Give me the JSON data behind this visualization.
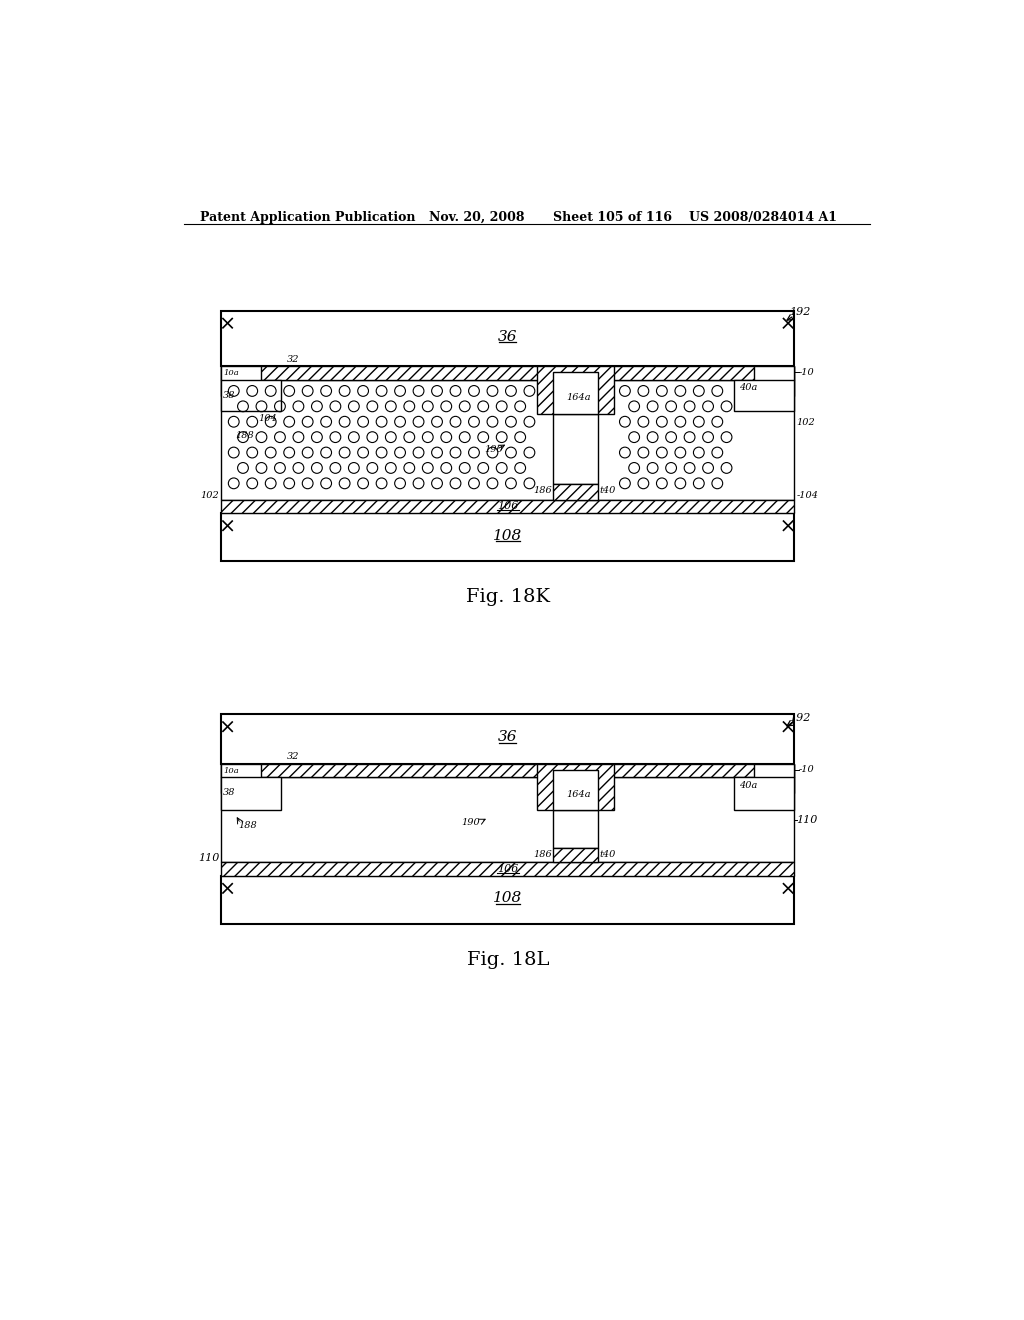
{
  "bg_color": "#ffffff",
  "header_text": "Patent Application Publication",
  "header_date": "Nov. 20, 2008",
  "header_sheet": "Sheet 105 of 116",
  "header_patent": "US 2008/0284014 A1",
  "fig1_label": "Fig. 18K",
  "fig2_label": "Fig. 18L"
}
